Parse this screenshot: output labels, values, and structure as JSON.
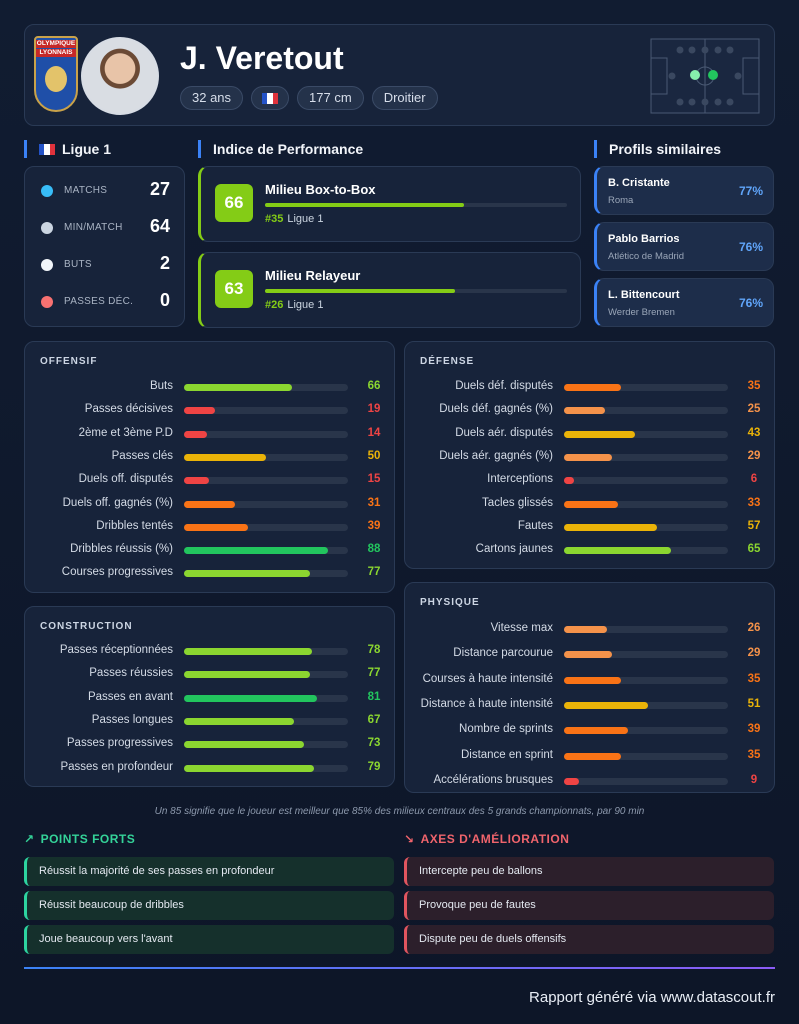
{
  "header": {
    "logo_text": [
      "OLYMPIQUE",
      "LYONNAIS"
    ],
    "name": "J. Veretout",
    "tags": [
      "32 ans",
      "177 cm",
      "Droitier"
    ]
  },
  "league": {
    "name": "Ligue 1",
    "stats": [
      {
        "label": "MATCHS",
        "value": 27
      },
      {
        "label": "MIN/MATCH",
        "value": 64
      },
      {
        "label": "BUTS",
        "value": 2
      },
      {
        "label": "PASSES DÉC.",
        "value": 0
      }
    ]
  },
  "performance": {
    "title": "Indice de Performance",
    "profiles": [
      {
        "score": 66,
        "role": "Milieu Box-to-Box",
        "rank": "#35",
        "league": "Ligue 1"
      },
      {
        "score": 63,
        "role": "Milieu Relayeur",
        "rank": "#26",
        "league": "Ligue 1"
      }
    ]
  },
  "similar": {
    "title": "Profils similaires",
    "players": [
      {
        "name": "B. Cristante",
        "club": "Roma",
        "match": "77%"
      },
      {
        "name": "Pablo Barrios",
        "club": "Atlético de Madrid",
        "match": "76%"
      },
      {
        "name": "L. Bittencourt",
        "club": "Werder Bremen",
        "match": "76%"
      }
    ]
  },
  "sections": [
    {
      "title": "OFFENSIF",
      "metrics": [
        {
          "label": "Buts",
          "value": 66
        },
        {
          "label": "Passes décisives",
          "value": 19
        },
        {
          "label": "2ème et 3ème P.D",
          "value": 14
        },
        {
          "label": "Passes clés",
          "value": 50
        },
        {
          "label": "Duels off. disputés",
          "value": 15
        },
        {
          "label": "Duels off. gagnés (%)",
          "value": 31
        },
        {
          "label": "Dribbles tentés",
          "value": 39
        },
        {
          "label": "Dribbles réussis (%)",
          "value": 88
        },
        {
          "label": "Courses progressives",
          "value": 77
        }
      ]
    },
    {
      "title": "DÉFENSE",
      "metrics": [
        {
          "label": "Duels déf. disputés",
          "value": 35
        },
        {
          "label": "Duels déf. gagnés (%)",
          "value": 25
        },
        {
          "label": "Duels aér. disputés",
          "value": 43
        },
        {
          "label": "Duels aér. gagnés (%)",
          "value": 29
        },
        {
          "label": "Interceptions",
          "value": 6
        },
        {
          "label": "Tacles glissés",
          "value": 33
        },
        {
          "label": "Fautes",
          "value": 57
        },
        {
          "label": "Cartons jaunes",
          "value": 65
        }
      ]
    },
    {
      "title": "CONSTRUCTION",
      "metrics": [
        {
          "label": "Passes réceptionnées",
          "value": 78
        },
        {
          "label": "Passes réussies",
          "value": 77
        },
        {
          "label": "Passes en avant",
          "value": 81
        },
        {
          "label": "Passes longues",
          "value": 67
        },
        {
          "label": "Passes progressives",
          "value": 73
        },
        {
          "label": "Passes en profondeur",
          "value": 79
        }
      ]
    },
    {
      "title": "PHYSIQUE",
      "metrics": [
        {
          "label": "Vitesse max",
          "value": 26
        },
        {
          "label": "Distance parcourue",
          "value": 29
        },
        {
          "label": "Courses à haute intensité",
          "value": 35
        },
        {
          "label": "Distance à haute intensité",
          "value": 51
        },
        {
          "label": "Nombre de sprints",
          "value": 39
        },
        {
          "label": "Distance en sprint",
          "value": 35
        },
        {
          "label": "Accélérations brusques",
          "value": 9
        }
      ]
    }
  ],
  "footnote": "Un 85 signifie que le joueur est meilleur que 85% des milieux centraux des 5 grands championnats, par 90 min",
  "strengths": {
    "title": "POINTS FORTS",
    "items": [
      "Réussit la majorité de ses passes en profondeur",
      "Réussit beaucoup de dribbles",
      "Joue beaucoup vers l'avant"
    ]
  },
  "improvements": {
    "title": "AXES D'AMÉLIORATION",
    "items": [
      "Intercepte peu de ballons",
      "Provoque peu de fautes",
      "Dispute peu de duels offensifs"
    ]
  },
  "footer": "Rapport généré via www.datascout.fr"
}
